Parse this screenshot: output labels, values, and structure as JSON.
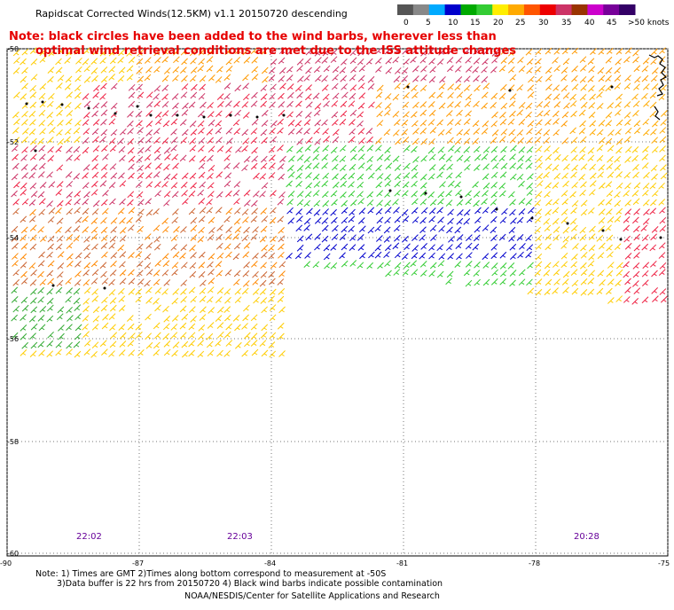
{
  "title": "Rapidscat Corrected Winds(12.5KM) v1.1 20150720 descending",
  "note_line1": "Note: black circles have been added to the wind barbs, wherever less than",
  "note_line2": "optimal wind retrieval conditions are met due to the ISS attitude changes",
  "scale": {
    "labels": [
      "0",
      "5",
      "10",
      "15",
      "20",
      "25",
      "30",
      "35",
      "40",
      "45",
      ">50 knots"
    ],
    "colors": [
      "#555555",
      "#888888",
      "#00aaff",
      "#0000cc",
      "#00aa00",
      "#33cc33",
      "#ffee00",
      "#ffaa00",
      "#ff5500",
      "#ee0000",
      "#cc3366",
      "#993300",
      "#cc00cc",
      "#770099",
      "#330066"
    ]
  },
  "lat_labels": [
    "-50",
    "-52",
    "-54",
    "-56",
    "-58",
    "-60"
  ],
  "lon_labels": [
    "-90",
    "-87",
    "-84",
    "-81",
    "-78",
    "-75"
  ],
  "time_labels": [
    "22:02",
    "22:03",
    "20:28"
  ],
  "footer": {
    "line1": "Note: 1) Times are GMT 2)Times along bottom correspond to measurement at -50S",
    "line2": "3)Data buffer is 22 hrs from 20150720 4) Black wind barbs indicate possible contamination",
    "line3": "NOAA/NESDIS/Center for Satellite Applications and Research"
  }
}
